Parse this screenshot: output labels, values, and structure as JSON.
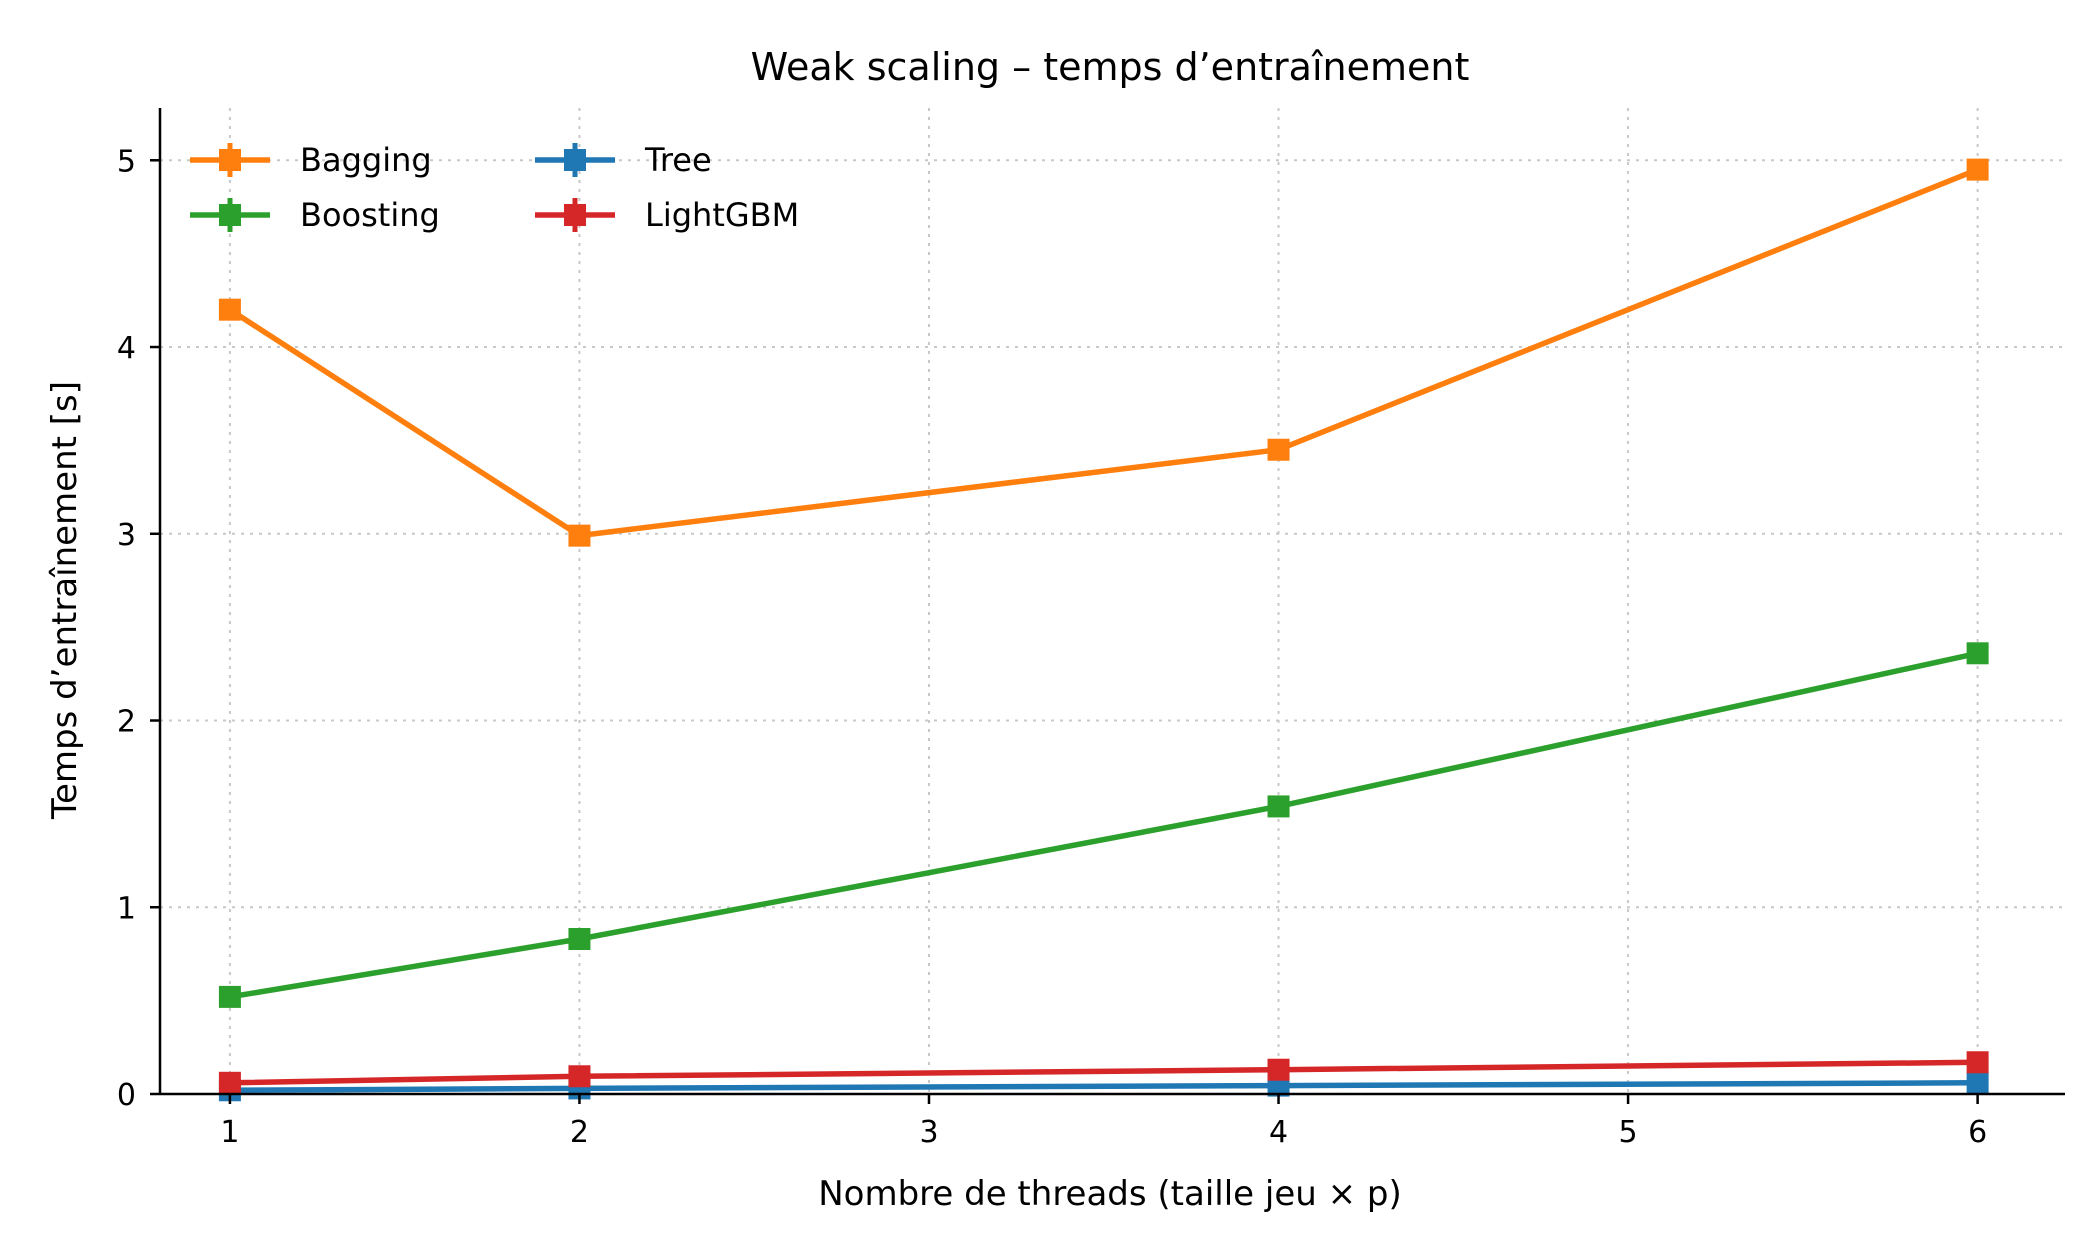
{
  "chart_data": {
    "type": "line",
    "title": "Weak scaling – temps d’entraînement",
    "xlabel": "Nombre de threads (taille jeu × p)",
    "ylabel": "Temps d’entraînement [s]",
    "xlim": [
      0.8,
      6.25
    ],
    "ylim": [
      0,
      5.28
    ],
    "xticks": [
      1,
      2,
      3,
      4,
      5,
      6
    ],
    "yticks": [
      0,
      1,
      2,
      3,
      4,
      5
    ],
    "x": [
      1,
      2,
      4,
      6
    ],
    "grid": true,
    "legend_position": "top-left",
    "series": [
      {
        "name": "Bagging",
        "color": "#ff7f0e",
        "values": [
          4.2,
          2.99,
          3.45,
          4.95
        ]
      },
      {
        "name": "Boosting",
        "color": "#2ca02c",
        "values": [
          0.52,
          0.83,
          1.54,
          2.36
        ]
      },
      {
        "name": "Tree",
        "color": "#1f77b4",
        "values": [
          0.02,
          0.03,
          0.045,
          0.06
        ]
      },
      {
        "name": "LightGBM",
        "color": "#d62728",
        "values": [
          0.06,
          0.095,
          0.13,
          0.17
        ]
      }
    ],
    "draw_order": [
      2,
      3,
      1,
      0
    ]
  }
}
